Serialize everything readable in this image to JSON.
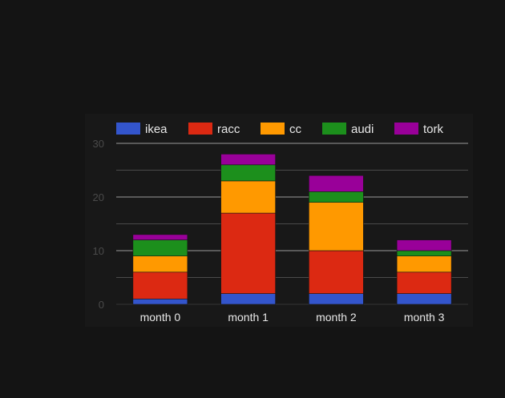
{
  "chart_data": {
    "type": "bar",
    "stacked": true,
    "categories": [
      "month 0",
      "month 1",
      "month 2",
      "month 3"
    ],
    "series": [
      {
        "name": "ikea",
        "color": "#3355cc",
        "values": [
          1,
          2,
          2,
          2
        ]
      },
      {
        "name": "racc",
        "color": "#dc2912",
        "values": [
          5,
          15,
          8,
          4
        ]
      },
      {
        "name": "cc",
        "color": "#ff9900",
        "values": [
          3,
          6,
          9,
          3
        ]
      },
      {
        "name": "audi",
        "color": "#1c8f1c",
        "values": [
          3,
          3,
          2,
          1
        ]
      },
      {
        "name": "tork",
        "color": "#990099",
        "values": [
          1,
          2,
          3,
          2
        ]
      }
    ],
    "yticks": [
      "0",
      "10",
      "20",
      "30"
    ],
    "ylim": [
      0,
      30
    ],
    "gridlines": true,
    "legend_position": "top",
    "title": "",
    "xlabel": "",
    "ylabel": ""
  }
}
